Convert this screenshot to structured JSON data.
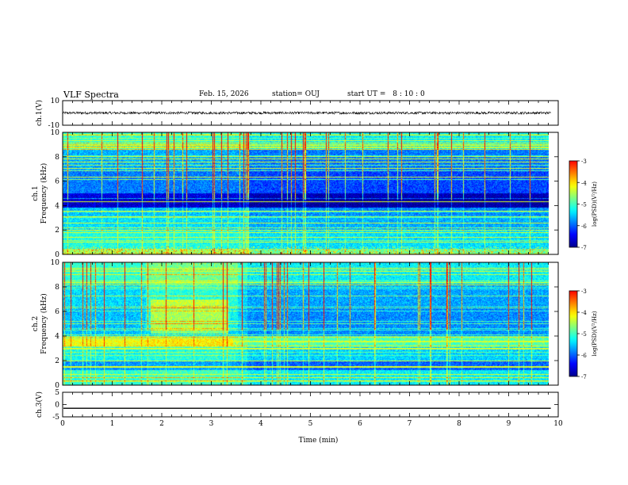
{
  "header": {
    "title": "VLF Spectra",
    "date": "Feb. 15, 2026",
    "station": "station= OUJ",
    "start_label": "start  UT  =",
    "start_h": "8",
    "sep1": ":",
    "start_m": "10",
    "sep2": ":",
    "start_s": "0"
  },
  "chart_data": [
    {
      "type": "line",
      "name": "ch1-waveform",
      "ylabel": "ch.1(V)",
      "ylim": [
        -10,
        10
      ],
      "yticks": [
        "10",
        "-10"
      ],
      "xlim": [
        0,
        10
      ],
      "trace_center": 0,
      "trace_noise_pp": 2
    },
    {
      "type": "heatmap",
      "name": "ch1-spectrogram",
      "ylabel_line1": "ch.1",
      "ylabel_line2": "Frequency  (kHz)",
      "ylim": [
        0,
        10
      ],
      "yticks": [
        "0",
        "2",
        "4",
        "6",
        "8",
        "10"
      ],
      "xlim": [
        0,
        10
      ],
      "data_end_min": 9.8,
      "colorbar": {
        "label": "log(PSD)(V²/Hz)",
        "range": [
          -7,
          -3
        ],
        "ticks": [
          "-3",
          "-4",
          "-5",
          "-6",
          "-7"
        ]
      }
    },
    {
      "type": "heatmap",
      "name": "ch2-spectrogram",
      "ylabel_line1": "ch.2",
      "ylabel_line2": "Frequency  (kHz)",
      "ylim": [
        0,
        10
      ],
      "yticks": [
        "0",
        "2",
        "4",
        "6",
        "8",
        "10"
      ],
      "xlim": [
        0,
        10
      ],
      "data_end_min": 9.8,
      "colorbar": {
        "label": "log(PSD)(V²/Hz)",
        "range": [
          -7,
          -3
        ],
        "ticks": [
          "-3",
          "-4",
          "-5",
          "-6",
          "-7"
        ]
      }
    },
    {
      "type": "line",
      "name": "ch3-waveform",
      "ylabel": "ch.3(V)",
      "ylim": [
        -5,
        5
      ],
      "yticks": [
        "5",
        "0",
        "-5"
      ],
      "xlim": [
        0,
        10
      ],
      "trace_level": -1.5
    }
  ],
  "xaxis": {
    "label": "Time  (min)",
    "ticks": [
      "0",
      "1",
      "2",
      "3",
      "4",
      "5",
      "6",
      "7",
      "8",
      "9",
      "10"
    ]
  },
  "colors": {
    "colormap": [
      "#00008b",
      "#0000ff",
      "#0080ff",
      "#00ffff",
      "#80ff80",
      "#ffff00",
      "#ff8000",
      "#ff0000",
      "#ffffff"
    ],
    "trace": "#000000"
  }
}
